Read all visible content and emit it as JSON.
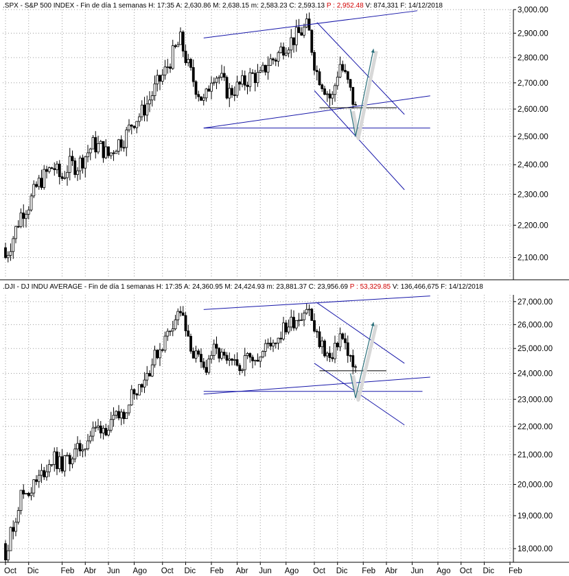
{
  "chart_data": [
    {
      "type": "candlestick",
      "header": {
        "symbol": ".SPX",
        "name": "S&P 500 INDEX",
        "period": "Fin de día 1 semanas",
        "H": "17:35",
        "A": "2,630.86",
        "M": "2,638.15",
        "m": "2,583.23",
        "C": "2,593.13",
        "P": "2,952.48",
        "V": "874,331",
        "F": "14/12/2018"
      },
      "scale": "log",
      "ylim": [
        2050,
        3000
      ],
      "y_ticks": [
        {
          "value": 2100,
          "label": "2,100.00"
        },
        {
          "value": 2200,
          "label": "2,200.00"
        },
        {
          "value": 2300,
          "label": "2,300.00"
        },
        {
          "value": 2400,
          "label": "2,400.00"
        },
        {
          "value": 2500,
          "label": "2,500.00"
        },
        {
          "value": 2600,
          "label": "2,600.00"
        },
        {
          "value": 2700,
          "label": "2,700.00"
        },
        {
          "value": 2800,
          "label": "2,800.00"
        },
        {
          "value": 2900,
          "label": "2,900.00"
        },
        {
          "value": 3000,
          "label": "3,000.00"
        }
      ],
      "weekly_close_start": 2130,
      "weekly_closes": [
        2100,
        2165,
        2240,
        2270,
        2330,
        2365,
        2395,
        2350,
        2400,
        2395,
        2430,
        2470,
        2460,
        2430,
        2475,
        2495,
        2555,
        2580,
        2630,
        2690,
        2740,
        2810,
        2870,
        2760,
        2680,
        2620,
        2740,
        2720,
        2660,
        2680,
        2700,
        2730,
        2720,
        2780,
        2800,
        2850,
        2870,
        2900,
        2930,
        2750,
        2690,
        2630,
        2780,
        2700,
        2600
      ],
      "trendlines": [
        {
          "from": {
            "week": 77,
            "price": 2880
          },
          "to": {
            "week": 160,
            "price": 2995
          }
        },
        {
          "from": {
            "week": 77,
            "price": 2530
          },
          "to": {
            "week": 165,
            "price": 2650
          }
        },
        {
          "from": {
            "week": 121,
            "price": 2945
          },
          "to": {
            "week": 155,
            "price": 2580
          }
        },
        {
          "from": {
            "week": 120,
            "price": 2670
          },
          "to": {
            "week": 155,
            "price": 2315
          }
        },
        {
          "from": {
            "week": 77,
            "price": 2530
          },
          "to": {
            "week": 165,
            "price": 2530
          },
          "style": "hline-blue"
        },
        {
          "from": {
            "week": 122,
            "price": 2605
          },
          "to": {
            "week": 152,
            "price": 2605
          },
          "style": "hline-black"
        }
      ],
      "projection_arrow": {
        "path": [
          {
            "week": 134,
            "price": 2600
          },
          {
            "week": 136,
            "price": 2500
          },
          {
            "week": 143,
            "price": 2835
          }
        ]
      }
    },
    {
      "type": "candlestick",
      "header": {
        "symbol": ".DJI",
        "name": "DJ INDU AVERAGE",
        "period": "Fin de día 1 semanas",
        "H": "17:35",
        "A": "24,360.95",
        "M": "24,424.93",
        "m": "23,881.37",
        "C": "23,956.69",
        "P": "53,329.85",
        "V": "136,466,675",
        "F": "14/12/2018"
      },
      "scale": "log",
      "ylim": [
        17700,
        27300
      ],
      "y_ticks": [
        {
          "value": 18000,
          "label": "18,000.00"
        },
        {
          "value": 19000,
          "label": "19,000.00"
        },
        {
          "value": 20000,
          "label": "20,000.00"
        },
        {
          "value": 21000,
          "label": "21,000.00"
        },
        {
          "value": 22000,
          "label": "22,000.00"
        },
        {
          "value": 23000,
          "label": "23,000.00"
        },
        {
          "value": 24000,
          "label": "24,000.00"
        },
        {
          "value": 25000,
          "label": "25,000.00"
        },
        {
          "value": 26000,
          "label": "26,000.00"
        },
        {
          "value": 27000,
          "label": "27,000.00"
        }
      ],
      "weekly_close_start": 18150,
      "weekly_closes": [
        17900,
        18700,
        19700,
        19800,
        20100,
        20500,
        20900,
        20600,
        20900,
        21100,
        21400,
        21800,
        22000,
        21900,
        22300,
        22600,
        23300,
        23600,
        24100,
        24800,
        25300,
        26100,
        26600,
        25200,
        24600,
        24100,
        24900,
        24700,
        24300,
        24300,
        24500,
        24800,
        24600,
        25200,
        25400,
        25800,
        26100,
        26400,
        26800,
        25500,
        25000,
        24400,
        25600,
        24900,
        24000
      ],
      "trendlines": [
        {
          "from": {
            "week": 77,
            "price": 26650
          },
          "to": {
            "week": 165,
            "price": 27250
          }
        },
        {
          "from": {
            "week": 77,
            "price": 23200
          },
          "to": {
            "week": 165,
            "price": 23850
          }
        },
        {
          "from": {
            "week": 121,
            "price": 26950
          },
          "to": {
            "week": 155,
            "price": 24400
          }
        },
        {
          "from": {
            "week": 120,
            "price": 24400
          },
          "to": {
            "week": 155,
            "price": 22050
          }
        },
        {
          "from": {
            "week": 77,
            "price": 23300
          },
          "to": {
            "week": 162,
            "price": 23300
          },
          "style": "hline-blue"
        },
        {
          "from": {
            "week": 122,
            "price": 24100
          },
          "to": {
            "week": 148,
            "price": 24100
          },
          "style": "hline-black"
        }
      ],
      "projection_arrow": {
        "path": [
          {
            "week": 134,
            "price": 24000
          },
          {
            "week": 136,
            "price": 23050
          },
          {
            "week": 143,
            "price": 26100
          }
        ]
      }
    }
  ],
  "x_axis": {
    "labels": [
      {
        "week": 0,
        "label": "Oct"
      },
      {
        "week": 9,
        "label": "Dic"
      },
      {
        "week": 22,
        "label": "Feb"
      },
      {
        "week": 31,
        "label": "Abr"
      },
      {
        "week": 40,
        "label": "Jun"
      },
      {
        "week": 50,
        "label": "Ago"
      },
      {
        "week": 61,
        "label": "Oct"
      },
      {
        "week": 70,
        "label": "Dic"
      },
      {
        "week": 80,
        "label": "Feb"
      },
      {
        "week": 90,
        "label": "Abr"
      },
      {
        "week": 99,
        "label": "Jun"
      },
      {
        "week": 109,
        "label": "Ago"
      },
      {
        "week": 120,
        "label": "Oct"
      },
      {
        "week": 129,
        "label": "Dic"
      },
      {
        "week": 139,
        "label": "Feb"
      },
      {
        "week": 148,
        "label": "Abr"
      },
      {
        "week": 158,
        "label": "Jun"
      },
      {
        "week": 168,
        "label": "Ago"
      },
      {
        "week": 177,
        "label": "Oct"
      },
      {
        "week": 186,
        "label": "Dic"
      },
      {
        "week": 196,
        "label": "Feb"
      }
    ]
  },
  "colors": {
    "up_candle": "#ffffff",
    "down_candle": "#000000",
    "trendline": "#1515a8",
    "projection_arrow": "#2a6f7a",
    "projection_shadow": "#d8d8d8",
    "header_red": "#d00000"
  }
}
